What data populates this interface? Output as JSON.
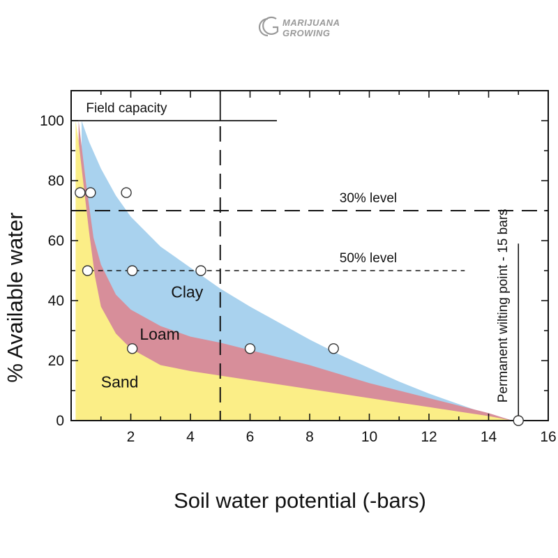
{
  "logo": {
    "line1": "MARIJUANA",
    "line2": "GROWING"
  },
  "colors": {
    "clay": "#a9d2ee",
    "loam": "#d78e9a",
    "sand": "#fbee87",
    "axis": "#111111"
  },
  "chart_data": {
    "type": "area",
    "xlabel": "Soil water potential (-bars)",
    "ylabel": "% Available water",
    "xlim": [
      0,
      16
    ],
    "ylim": [
      0,
      110
    ],
    "xticks": [
      2,
      4,
      6,
      8,
      10,
      12,
      14,
      16
    ],
    "yticks": [
      0,
      20,
      40,
      60,
      80,
      100
    ],
    "grid": false,
    "series": [
      {
        "name": "Clay",
        "color": "#a9d2ee",
        "x": [
          0.35,
          0.6,
          1.0,
          1.5,
          2.0,
          3.0,
          4.0,
          5.0,
          6.0,
          7.0,
          8.0,
          9.0,
          10.0,
          11.0,
          12.0,
          13.0,
          14.0,
          14.8
        ],
        "y": [
          100,
          93,
          84,
          75,
          68,
          58,
          51,
          44,
          38,
          32.5,
          27,
          22,
          17.5,
          13,
          9,
          5.5,
          2,
          0
        ]
      },
      {
        "name": "Loam",
        "color": "#d78e9a",
        "x": [
          0.25,
          0.5,
          0.75,
          1.0,
          1.5,
          2.0,
          3.0,
          4.0,
          5.0,
          6.0,
          7.0,
          8.0,
          9.0,
          10.0,
          11.0,
          12.0,
          13.0,
          14.0,
          14.8
        ],
        "y": [
          100,
          79,
          61,
          52,
          42,
          37,
          31.5,
          28,
          26,
          23.5,
          21,
          18.5,
          15.5,
          12.5,
          10,
          7.5,
          5,
          2.5,
          0
        ]
      },
      {
        "name": "Sand",
        "color": "#fbee87",
        "x": [
          0.15,
          0.25,
          0.4,
          0.6,
          0.8,
          1.0,
          1.5,
          2.0,
          3.0,
          4.0,
          5.0,
          6.0,
          7.0,
          8.0,
          9.0,
          10.0,
          11.0,
          12.0,
          13.0,
          14.0,
          14.8
        ],
        "y": [
          100,
          93,
          80,
          63,
          48,
          38,
          29,
          24,
          18.5,
          16.5,
          15,
          13.5,
          12,
          10.5,
          9,
          7.5,
          6,
          4.5,
          3,
          1.5,
          0
        ]
      }
    ],
    "markers": {
      "x": [
        0.3,
        0.65,
        1.85,
        0.55,
        2.05,
        4.35,
        2.05,
        6.0,
        8.8,
        15.0
      ],
      "y": [
        76,
        76,
        76,
        50,
        50,
        50,
        24,
        24,
        24,
        0
      ]
    },
    "reference_lines": [
      {
        "orientation": "vertical",
        "x": 5,
        "style": "long-dash",
        "label": "Field capacity"
      },
      {
        "orientation": "horizontal",
        "y": 70,
        "style": "long-dash",
        "label": "30% level"
      },
      {
        "orientation": "horizontal",
        "y": 50,
        "style": "short-dash",
        "label": "50% level"
      },
      {
        "orientation": "vertical",
        "x": 15,
        "style": "solid",
        "label": "Permanent wilting point - 15 bars"
      }
    ],
    "field_capacity_y": 100
  }
}
